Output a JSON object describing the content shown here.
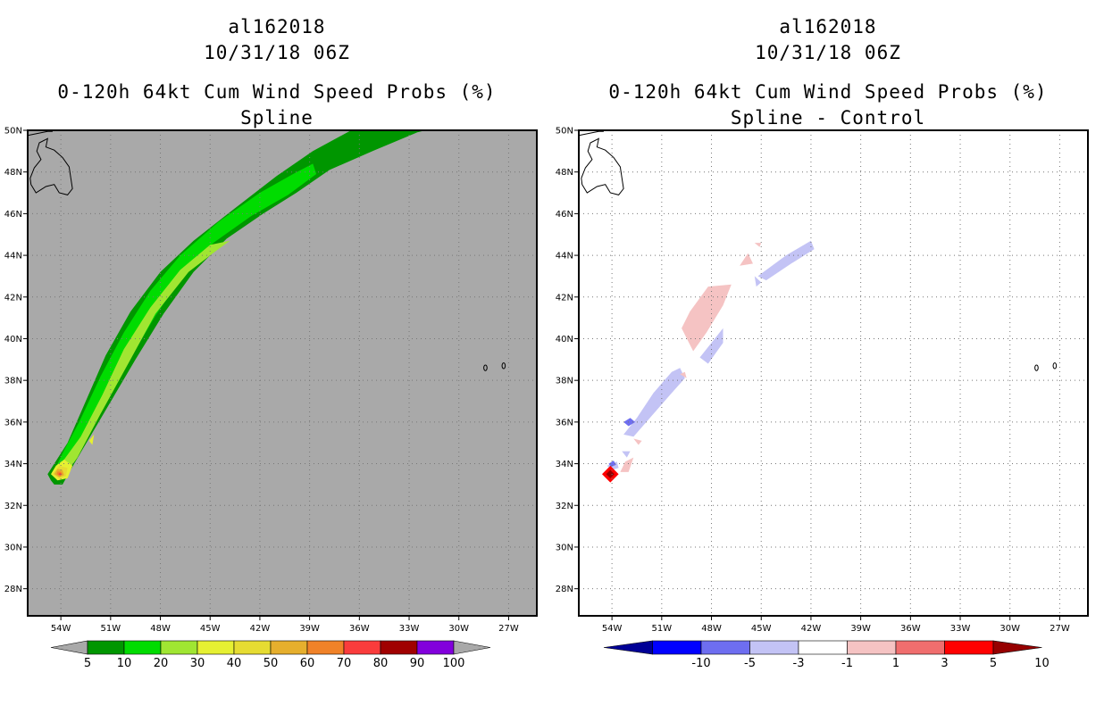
{
  "chart_data": [
    {
      "type": "heatmap",
      "storm": "al162018",
      "date": "10/31/18 06Z",
      "title": "0-120h 64kt Cum Wind Speed Probs (%)",
      "subtitle": "Spline",
      "background_color": "#a9a9a9",
      "xlim": [
        -56,
        -25.3
      ],
      "ylim": [
        26.7,
        50
      ],
      "x_ticks": [
        "54W",
        "51W",
        "48W",
        "45W",
        "42W",
        "39W",
        "36W",
        "33W",
        "30W",
        "27W"
      ],
      "y_ticks": [
        "28N",
        "30N",
        "32N",
        "34N",
        "36N",
        "38N",
        "40N",
        "42N",
        "44N",
        "46N",
        "48N",
        "50N"
      ],
      "colorbar": {
        "labels": [
          "5",
          "10",
          "20",
          "30",
          "40",
          "50",
          "60",
          "70",
          "80",
          "90",
          "100"
        ],
        "colors": [
          "#009600",
          "#00dc00",
          "#a0e632",
          "#e6f032",
          "#e6dc32",
          "#e6af2d",
          "#f08228",
          "#fa3c3c",
          "#a00000",
          "#8200dc"
        ],
        "end_color": "#a9a9a9"
      },
      "contours": [
        {
          "level": 5,
          "color": "#009600",
          "points": [
            [
              -54.8,
              33.5
            ],
            [
              -54.6,
              33.2
            ],
            [
              -54.4,
              33.0
            ],
            [
              -53.9,
              33.0
            ],
            [
              -53.2,
              34.0
            ],
            [
              -51.5,
              36.3
            ],
            [
              -49.5,
              39.0
            ],
            [
              -47.8,
              41.2
            ],
            [
              -46.0,
              43.2
            ],
            [
              -44.0,
              44.8
            ],
            [
              -41.8,
              46.0
            ],
            [
              -39.8,
              47.0
            ],
            [
              -37.8,
              48.1
            ],
            [
              -35.2,
              49.0
            ],
            [
              -32.5,
              49.9
            ],
            [
              -32.0,
              50.0
            ],
            [
              -36.5,
              50.0
            ],
            [
              -38.8,
              49.0
            ],
            [
              -41.0,
              47.8
            ],
            [
              -43.6,
              46.2
            ],
            [
              -46.0,
              44.7
            ],
            [
              -48.0,
              43.2
            ],
            [
              -49.8,
              41.3
            ],
            [
              -51.3,
              39.2
            ],
            [
              -52.5,
              37.0
            ],
            [
              -53.6,
              35.0
            ],
            [
              -54.4,
              34.0
            ]
          ]
        },
        {
          "level": 10,
          "color": "#00dc00",
          "points": [
            [
              -54.5,
              33.5
            ],
            [
              -54.0,
              33.3
            ],
            [
              -53.3,
              34.0
            ],
            [
              -51.8,
              36.2
            ],
            [
              -50.0,
              38.8
            ],
            [
              -48.3,
              41.1
            ],
            [
              -46.6,
              43.1
            ],
            [
              -44.8,
              44.6
            ],
            [
              -42.5,
              45.9
            ],
            [
              -40.3,
              46.9
            ],
            [
              -38.6,
              47.9
            ],
            [
              -38.8,
              48.4
            ],
            [
              -40.0,
              47.9
            ],
            [
              -42.0,
              47.0
            ],
            [
              -44.5,
              45.6
            ],
            [
              -46.8,
              44.0
            ],
            [
              -48.6,
              42.3
            ],
            [
              -50.2,
              40.3
            ],
            [
              -51.6,
              38.2
            ],
            [
              -52.9,
              36.0
            ],
            [
              -53.9,
              34.5
            ]
          ]
        },
        {
          "level": 20,
          "color": "#a0e632",
          "points": [
            [
              -54.3,
              33.5
            ],
            [
              -53.8,
              33.4
            ],
            [
              -53.0,
              34.3
            ],
            [
              -51.6,
              36.4
            ],
            [
              -49.8,
              39.0
            ],
            [
              -48.3,
              41.2
            ],
            [
              -46.3,
              43.2
            ],
            [
              -44.5,
              44.3
            ],
            [
              -43.8,
              44.7
            ],
            [
              -45.0,
              44.5
            ],
            [
              -46.8,
              43.3
            ],
            [
              -48.6,
              41.5
            ],
            [
              -50.2,
              39.5
            ],
            [
              -51.5,
              37.3
            ],
            [
              -52.8,
              35.3
            ],
            [
              -53.8,
              34.2
            ]
          ]
        },
        {
          "level": 30,
          "color": "#e6f032",
          "points": [
            [
              -54.6,
              33.5
            ],
            [
              -54.2,
              33.2
            ],
            [
              -53.6,
              33.3
            ],
            [
              -53.3,
              33.9
            ],
            [
              -53.8,
              34.2
            ],
            [
              -54.3,
              33.9
            ]
          ]
        },
        {
          "level": 30,
          "color": "#e6f032",
          "points": [
            [
              -52.3,
              35.1
            ],
            [
              -52.0,
              35.4
            ],
            [
              -52.1,
              34.9
            ]
          ]
        },
        {
          "level": 40,
          "color": "#e6dc32",
          "points": [
            [
              -54.5,
              33.5
            ],
            [
              -54.1,
              33.3
            ],
            [
              -53.7,
              33.4
            ],
            [
              -53.6,
              33.8
            ],
            [
              -54.1,
              33.9
            ]
          ]
        },
        {
          "level": 50,
          "color": "#e6af2d",
          "points": [
            [
              -54.4,
              33.5
            ],
            [
              -54.1,
              33.35
            ],
            [
              -53.8,
              33.45
            ],
            [
              -53.9,
              33.7
            ],
            [
              -54.2,
              33.75
            ]
          ]
        },
        {
          "level": 60,
          "color": "#f08228",
          "points": [
            [
              -54.25,
              33.5
            ],
            [
              -54.05,
              33.4
            ],
            [
              -53.9,
              33.5
            ],
            [
              -54.0,
              33.62
            ],
            [
              -54.2,
              33.62
            ]
          ]
        },
        {
          "level": 70,
          "color": "#fa3c3c",
          "points": [
            [
              -54.15,
              33.5
            ],
            [
              -54.05,
              33.45
            ],
            [
              -53.95,
              33.5
            ],
            [
              -54.05,
              33.56
            ]
          ]
        }
      ]
    },
    {
      "type": "heatmap",
      "storm": "al162018",
      "date": "10/31/18 06Z",
      "title": "0-120h 64kt Cum Wind Speed Probs (%)",
      "subtitle": "Spline - Control",
      "background_color": "#ffffff",
      "xlim": [
        -56,
        -25.3
      ],
      "ylim": [
        26.7,
        50
      ],
      "x_ticks": [
        "54W",
        "51W",
        "48W",
        "45W",
        "42W",
        "39W",
        "36W",
        "33W",
        "30W",
        "27W"
      ],
      "y_ticks": [
        "28N",
        "30N",
        "32N",
        "34N",
        "36N",
        "38N",
        "40N",
        "42N",
        "44N",
        "46N",
        "48N",
        "50N"
      ],
      "colorbar": {
        "labels": [
          "-10",
          "-5",
          "-3",
          "-1",
          "1",
          "3",
          "5",
          "10"
        ],
        "colors": [
          "#0000ff",
          "#6e6ef0",
          "#c3c3f5",
          "#ffffff",
          "#f5c3c3",
          "#f06e6e",
          "#ff0000"
        ],
        "low_end_color": "#000096",
        "high_end_color": "#960000"
      },
      "contours": [
        {
          "level": -3,
          "color": "#c3c3f5",
          "points": [
            [
              -53.3,
              35.4
            ],
            [
              -52.5,
              36.2
            ],
            [
              -51.5,
              37.4
            ],
            [
              -50.4,
              38.4
            ],
            [
              -49.9,
              38.6
            ],
            [
              -49.6,
              38.1
            ],
            [
              -50.5,
              37.3
            ],
            [
              -51.6,
              36.3
            ],
            [
              -52.7,
              35.3
            ]
          ]
        },
        {
          "level": -3,
          "color": "#c3c3f5",
          "points": [
            [
              -48.2,
              38.8
            ],
            [
              -47.3,
              39.8
            ],
            [
              -47.3,
              40.5
            ],
            [
              -47.8,
              40.0
            ],
            [
              -48.7,
              39.1
            ]
          ]
        },
        {
          "level": -3,
          "color": "#c3c3f5",
          "points": [
            [
              -45.2,
              43.0
            ],
            [
              -43.5,
              44.0
            ],
            [
              -42.0,
              44.7
            ],
            [
              -41.8,
              44.3
            ],
            [
              -43.2,
              43.6
            ],
            [
              -44.7,
              42.8
            ]
          ]
        },
        {
          "level": -3,
          "color": "#c3c3f5",
          "points": [
            [
              -45.4,
              43.0
            ],
            [
              -45.0,
              42.7
            ],
            [
              -45.3,
              42.5
            ]
          ]
        },
        {
          "level": -3,
          "color": "#c3c3f5",
          "points": [
            [
              -53.4,
              34.6
            ],
            [
              -52.9,
              34.6
            ],
            [
              -53.1,
              34.3
            ]
          ]
        },
        {
          "level": -3,
          "color": "#c3c3f5",
          "points": [
            [
              -54.3,
              33.9
            ],
            [
              -53.7,
              34.1
            ],
            [
              -53.6,
              33.8
            ],
            [
              -54.0,
              33.7
            ]
          ]
        },
        {
          "level": -5,
          "color": "#6e6ef0",
          "points": [
            [
              -53.3,
              36.0
            ],
            [
              -52.9,
              36.2
            ],
            [
              -52.6,
              36.0
            ],
            [
              -53.0,
              35.8
            ]
          ]
        },
        {
          "level": -5,
          "color": "#6e6ef0",
          "points": [
            [
              -54.2,
              34.0
            ],
            [
              -53.9,
              34.15
            ],
            [
              -53.75,
              33.95
            ],
            [
              -54.05,
              33.85
            ]
          ]
        },
        {
          "level": 1,
          "color": "#f5c3c3",
          "points": [
            [
              -49.3,
              41.3
            ],
            [
              -48.2,
              42.5
            ],
            [
              -46.8,
              42.6
            ],
            [
              -47.3,
              41.6
            ],
            [
              -48.3,
              40.3
            ],
            [
              -49.1,
              39.4
            ],
            [
              -49.8,
              40.5
            ]
          ]
        },
        {
          "level": 1,
          "color": "#f5c3c3",
          "points": [
            [
              -46.3,
              43.5
            ],
            [
              -45.8,
              44.1
            ],
            [
              -45.5,
              43.6
            ]
          ]
        },
        {
          "level": 1,
          "color": "#f5c3c3",
          "points": [
            [
              -45.4,
              44.6
            ],
            [
              -45.0,
              44.6
            ],
            [
              -45.1,
              44.4
            ]
          ]
        },
        {
          "level": 1,
          "color": "#f5c3c3",
          "points": [
            [
              -49.9,
              38.3
            ],
            [
              -49.6,
              38.4
            ],
            [
              -49.5,
              38.1
            ]
          ]
        },
        {
          "level": 1,
          "color": "#f5c3c3",
          "points": [
            [
              -52.7,
              35.2
            ],
            [
              -52.2,
              35.1
            ],
            [
              -52.4,
              34.9
            ]
          ]
        },
        {
          "level": 1,
          "color": "#f5c3c3",
          "points": [
            [
              -53.2,
              34.1
            ],
            [
              -52.7,
              34.3
            ],
            [
              -53.0,
              33.6
            ],
            [
              -53.5,
              33.6
            ]
          ]
        },
        {
          "level": 5,
          "color": "#ff0000",
          "points": [
            [
              -54.6,
              33.5
            ],
            [
              -54.1,
              33.1
            ],
            [
              -53.6,
              33.5
            ],
            [
              -54.1,
              33.9
            ]
          ]
        },
        {
          "level": 10,
          "color": "#960000",
          "points": [
            [
              -54.35,
              33.5
            ],
            [
              -54.1,
              33.3
            ],
            [
              -53.85,
              33.5
            ],
            [
              -54.1,
              33.7
            ]
          ]
        }
      ]
    }
  ]
}
